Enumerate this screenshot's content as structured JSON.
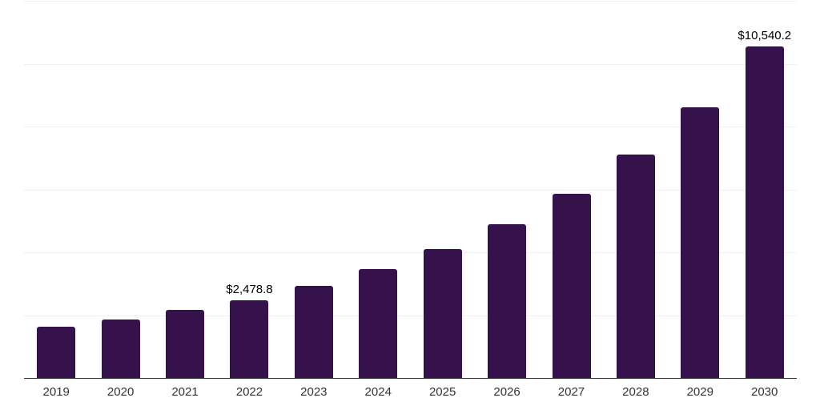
{
  "chart_data": {
    "type": "bar",
    "title": "",
    "xlabel": "",
    "ylabel": "",
    "categories": [
      "2019",
      "2020",
      "2021",
      "2022",
      "2023",
      "2024",
      "2025",
      "2026",
      "2027",
      "2028",
      "2029",
      "2030"
    ],
    "values": [
      1640,
      1870,
      2160,
      2478.8,
      2930,
      3470,
      4100,
      4900,
      5850,
      7100,
      8610,
      10540.2
    ],
    "data_labels": [
      "",
      "",
      "",
      "$2,478.8",
      "",
      "",
      "",
      "",
      "",
      "",
      "",
      "$10,540.2"
    ],
    "ylim": [
      0,
      12000
    ],
    "gridline_interval": 2000,
    "grid": true,
    "y_tick_labels_visible": false,
    "legend": false,
    "colors": {
      "bar": "#35124B",
      "gridline": "#EFEFEF",
      "axis_line": "#333333",
      "x_tick_label": "#333333",
      "data_label": "#000000",
      "background": "#FFFFFF"
    }
  }
}
